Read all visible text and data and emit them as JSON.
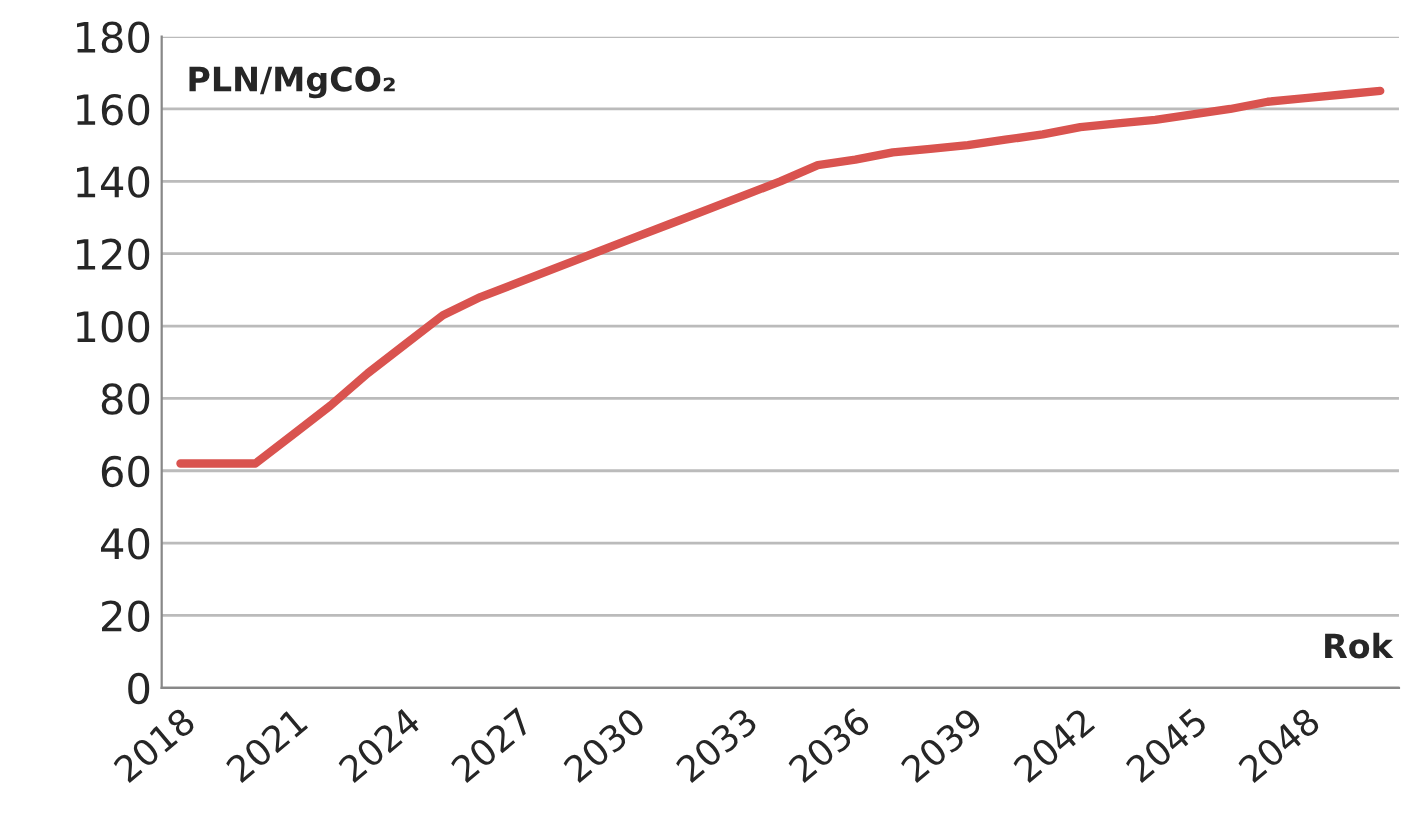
{
  "chart_data": {
    "type": "line",
    "ylabel": "PLN/MgCO₂",
    "xlabel": "Rok",
    "categories": [
      "2018",
      null,
      null,
      "2021",
      null,
      null,
      "2024",
      null,
      null,
      "2027",
      null,
      null,
      "2030",
      null,
      null,
      "2033",
      null,
      null,
      "2036",
      null,
      null,
      "2039",
      null,
      null,
      "2042",
      null,
      null,
      "2045",
      null,
      null,
      "2048",
      null,
      null
    ],
    "series": [
      {
        "color": "#d9534f",
        "values": [
          62,
          62,
          62,
          70,
          78,
          87,
          95,
          103,
          108,
          112,
          116,
          120,
          124,
          128,
          132,
          136,
          140,
          144.5,
          146,
          148,
          149,
          150,
          151.5,
          153,
          155,
          156,
          157,
          158.5,
          160,
          162,
          163,
          164,
          165
        ]
      }
    ],
    "ylim": [
      0,
      180
    ],
    "yticks": [
      0,
      20,
      40,
      60,
      80,
      100,
      120,
      140,
      160,
      180
    ],
    "grid": "y",
    "marker": "none",
    "line_style": "solid"
  }
}
